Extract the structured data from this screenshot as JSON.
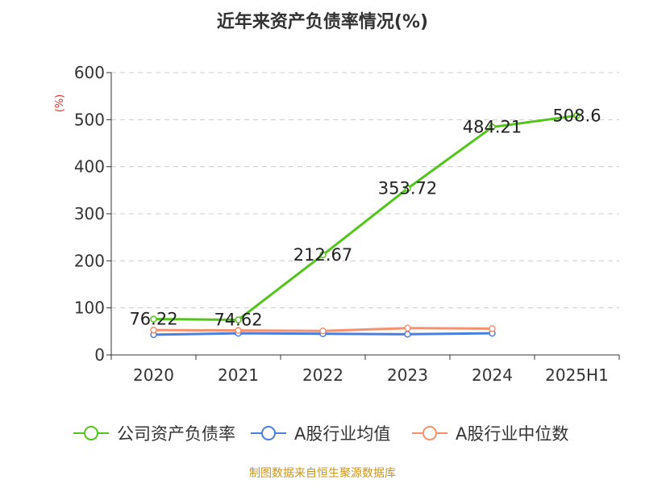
{
  "chart_data": {
    "type": "line",
    "title": "近年来资产负债率情况(%)",
    "ylabel": "(%)",
    "xlabel": "",
    "categories": [
      "2020",
      "2021",
      "2022",
      "2023",
      "2024",
      "2025H1"
    ],
    "ylim": [
      0,
      600
    ],
    "yticks": [
      0,
      100,
      200,
      300,
      400,
      500,
      600
    ],
    "grid": true,
    "legend_position": "bottom",
    "series": [
      {
        "name": "公司资产负债率",
        "color": "#52c41a",
        "values": [
          76.22,
          74.62,
          212.67,
          353.72,
          484.21,
          508.6
        ],
        "data_labels": [
          "76.22",
          "74.62",
          "212.67",
          "353.72",
          "484.21",
          "508.6"
        ]
      },
      {
        "name": "A股行业均值",
        "color": "#4a7fe0",
        "values": [
          43,
          46,
          45,
          44,
          46,
          null
        ]
      },
      {
        "name": "A股行业中位数",
        "color": "#f5916c",
        "values": [
          53,
          52,
          51,
          57,
          56,
          null
        ]
      }
    ],
    "source": "制图数据来自恒生聚源数据库"
  }
}
